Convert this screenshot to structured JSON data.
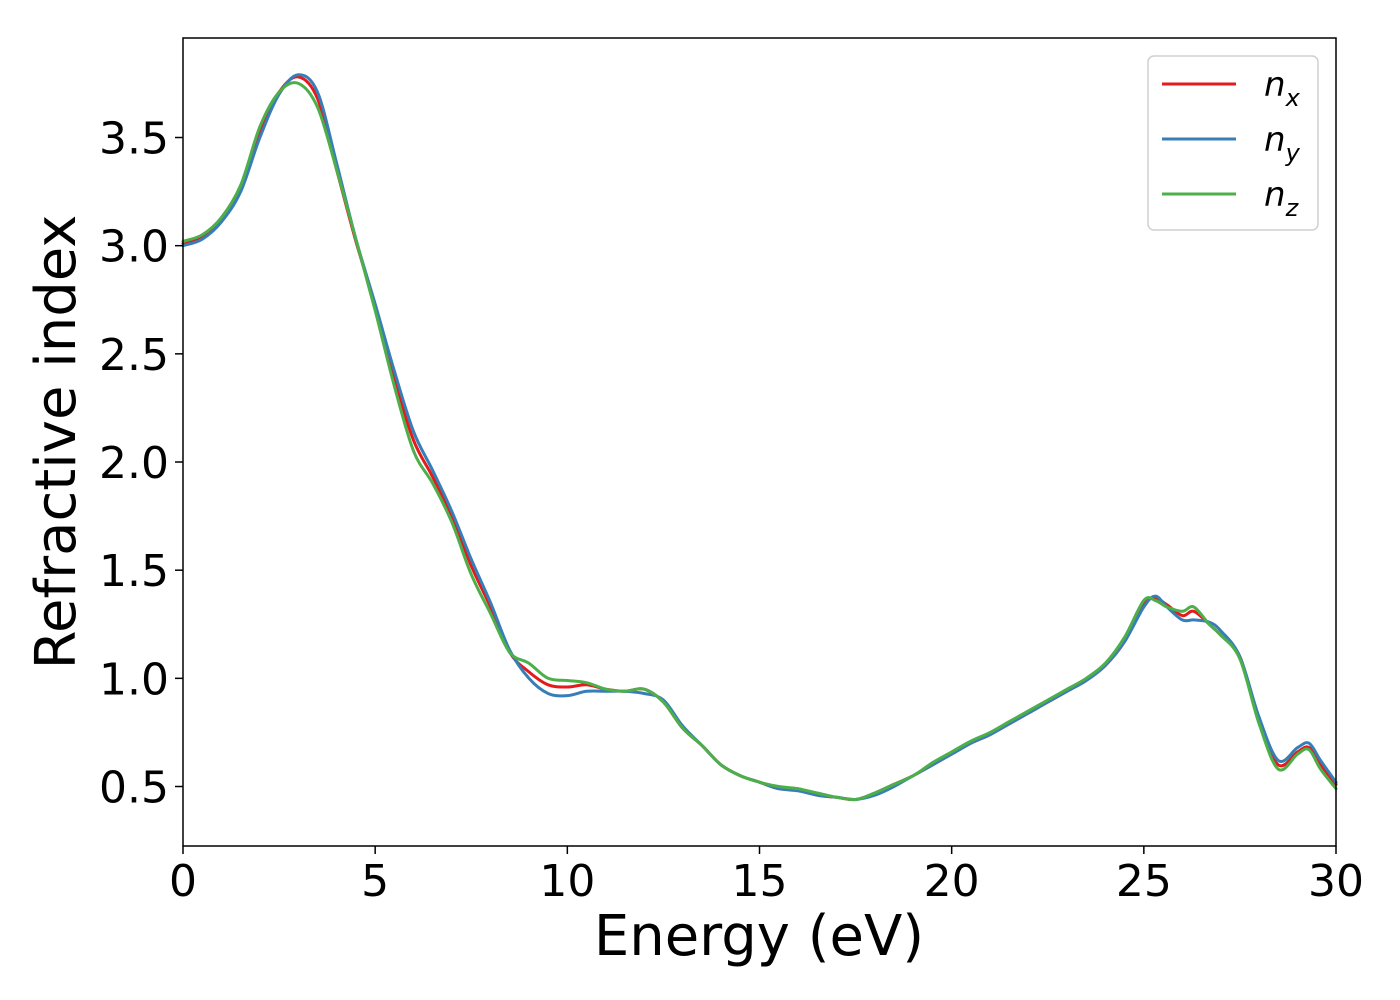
{
  "chart_data": {
    "type": "line",
    "xlabel": "Energy (eV)",
    "ylabel": "Refractive index",
    "xlim": [
      0,
      30
    ],
    "ylim": [
      0.225,
      3.96
    ],
    "x_ticks": [
      "0",
      "5",
      "10",
      "15",
      "20",
      "25",
      "30"
    ],
    "y_ticks": [
      "0.5",
      "1.0",
      "1.5",
      "2.0",
      "2.5",
      "3.0",
      "3.5"
    ],
    "grid": false,
    "legend_position": "top-right",
    "series": [
      {
        "name": "n",
        "subscript": "x",
        "color": "#e41a1c",
        "x": [
          0,
          0.5,
          1.0,
          1.5,
          2.0,
          2.5,
          3.0,
          3.5,
          4.0,
          4.5,
          5.0,
          5.5,
          6.0,
          6.5,
          7.0,
          7.5,
          8.0,
          8.5,
          9.0,
          9.5,
          10.0,
          10.5,
          11.0,
          11.5,
          12.0,
          12.5,
          13.0,
          13.5,
          14.0,
          14.5,
          15.0,
          15.5,
          16.0,
          16.5,
          17.0,
          17.5,
          18.0,
          18.5,
          19.0,
          19.5,
          20.0,
          20.5,
          21.0,
          21.5,
          22.0,
          22.5,
          23.0,
          23.5,
          24.0,
          24.5,
          25.0,
          25.3,
          25.6,
          26.0,
          26.3,
          26.7,
          27.0,
          27.5,
          28.0,
          28.5,
          29.0,
          29.3,
          29.6,
          30.0
        ],
        "y": [
          3.01,
          3.04,
          3.12,
          3.27,
          3.53,
          3.71,
          3.78,
          3.68,
          3.35,
          3.02,
          2.72,
          2.38,
          2.1,
          1.93,
          1.75,
          1.52,
          1.33,
          1.12,
          1.03,
          0.97,
          0.96,
          0.97,
          0.95,
          0.94,
          0.95,
          0.89,
          0.77,
          0.69,
          0.6,
          0.55,
          0.52,
          0.49,
          0.49,
          0.46,
          0.45,
          0.44,
          0.47,
          0.51,
          0.55,
          0.6,
          0.65,
          0.7,
          0.74,
          0.79,
          0.84,
          0.89,
          0.94,
          0.99,
          1.06,
          1.17,
          1.34,
          1.37,
          1.34,
          1.29,
          1.31,
          1.25,
          1.2,
          1.1,
          0.8,
          0.6,
          0.66,
          0.68,
          0.6,
          0.51
        ]
      },
      {
        "name": "n",
        "subscript": "y",
        "color": "#377eb8",
        "x": [
          0,
          0.5,
          1.0,
          1.5,
          2.0,
          2.5,
          3.0,
          3.5,
          4.0,
          4.5,
          5.0,
          5.5,
          6.0,
          6.5,
          7.0,
          7.5,
          8.0,
          8.5,
          9.0,
          9.5,
          10.0,
          10.5,
          11.0,
          11.5,
          12.0,
          12.5,
          13.0,
          13.5,
          14.0,
          14.5,
          15.0,
          15.5,
          16.0,
          16.5,
          17.0,
          17.5,
          18.0,
          18.5,
          19.0,
          19.5,
          20.0,
          20.5,
          21.0,
          21.5,
          22.0,
          22.5,
          23.0,
          23.5,
          24.0,
          24.5,
          25.0,
          25.3,
          25.6,
          26.0,
          26.3,
          26.7,
          27.0,
          27.5,
          28.0,
          28.5,
          29.0,
          29.3,
          29.6,
          30.0
        ],
        "y": [
          3.0,
          3.03,
          3.11,
          3.25,
          3.5,
          3.7,
          3.79,
          3.71,
          3.38,
          3.03,
          2.73,
          2.42,
          2.14,
          1.96,
          1.77,
          1.55,
          1.35,
          1.13,
          1.0,
          0.93,
          0.92,
          0.94,
          0.94,
          0.94,
          0.93,
          0.9,
          0.78,
          0.69,
          0.6,
          0.55,
          0.52,
          0.49,
          0.48,
          0.46,
          0.45,
          0.44,
          0.46,
          0.5,
          0.55,
          0.6,
          0.65,
          0.7,
          0.74,
          0.79,
          0.84,
          0.89,
          0.94,
          0.99,
          1.06,
          1.17,
          1.33,
          1.38,
          1.33,
          1.27,
          1.27,
          1.26,
          1.22,
          1.1,
          0.82,
          0.62,
          0.68,
          0.7,
          0.62,
          0.52
        ]
      },
      {
        "name": "n",
        "subscript": "z",
        "color": "#4daf4a",
        "x": [
          0,
          0.5,
          1.0,
          1.5,
          2.0,
          2.5,
          3.0,
          3.5,
          4.0,
          4.5,
          5.0,
          5.5,
          6.0,
          6.5,
          7.0,
          7.5,
          8.0,
          8.5,
          9.0,
          9.5,
          10.0,
          10.5,
          11.0,
          11.5,
          12.0,
          12.5,
          13.0,
          13.5,
          14.0,
          14.5,
          15.0,
          15.5,
          16.0,
          16.5,
          17.0,
          17.5,
          18.0,
          18.5,
          19.0,
          19.5,
          20.0,
          20.5,
          21.0,
          21.5,
          22.0,
          22.5,
          23.0,
          23.5,
          24.0,
          24.5,
          25.0,
          25.3,
          25.6,
          26.0,
          26.3,
          26.7,
          27.0,
          27.5,
          28.0,
          28.5,
          29.0,
          29.3,
          29.6,
          30.0
        ],
        "y": [
          3.02,
          3.05,
          3.13,
          3.28,
          3.55,
          3.71,
          3.75,
          3.64,
          3.35,
          3.03,
          2.7,
          2.35,
          2.05,
          1.9,
          1.72,
          1.48,
          1.3,
          1.12,
          1.07,
          1.0,
          0.99,
          0.98,
          0.95,
          0.94,
          0.95,
          0.89,
          0.77,
          0.69,
          0.6,
          0.55,
          0.52,
          0.5,
          0.49,
          0.47,
          0.45,
          0.44,
          0.47,
          0.51,
          0.55,
          0.61,
          0.66,
          0.71,
          0.75,
          0.8,
          0.85,
          0.9,
          0.95,
          1.0,
          1.07,
          1.19,
          1.36,
          1.36,
          1.33,
          1.31,
          1.33,
          1.25,
          1.2,
          1.09,
          0.79,
          0.58,
          0.65,
          0.67,
          0.58,
          0.49
        ]
      }
    ]
  }
}
